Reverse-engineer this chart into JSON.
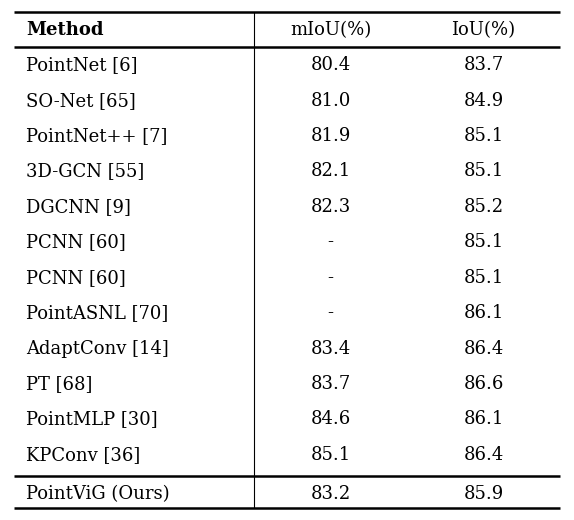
{
  "columns": [
    "Method",
    "mIoU(%)",
    "IoU(%)"
  ],
  "rows": [
    [
      "PointNet [6]",
      "80.4",
      "83.7"
    ],
    [
      "SO-Net [65]",
      "81.0",
      "84.9"
    ],
    [
      "PointNet++ [7]",
      "81.9",
      "85.1"
    ],
    [
      "3D-GCN [55]",
      "82.1",
      "85.1"
    ],
    [
      "DGCNN [9]",
      "82.3",
      "85.2"
    ],
    [
      "PCNN [60]",
      "-",
      "85.1"
    ],
    [
      "PCNN [60]",
      "-",
      "85.1"
    ],
    [
      "PointASNL [70]",
      "-",
      "86.1"
    ],
    [
      "AdaptConv [14]",
      "83.4",
      "86.4"
    ],
    [
      "PT [68]",
      "83.7",
      "86.6"
    ],
    [
      "PointMLP [30]",
      "84.6",
      "86.1"
    ],
    [
      "KPConv [36]",
      "85.1",
      "86.4"
    ]
  ],
  "last_row": [
    "PointViG (Ours)",
    "83.2",
    "85.9"
  ],
  "background_color": "#ffffff",
  "line_color": "#000000",
  "font_size": 13.0,
  "fig_width": 5.74,
  "fig_height": 5.2,
  "dpi": 100
}
